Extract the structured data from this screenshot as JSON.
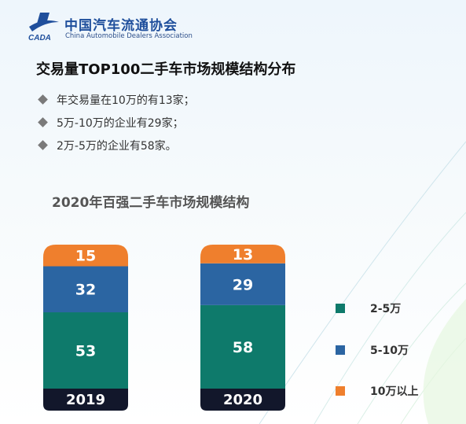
{
  "header": {
    "org_name_cn": "中国汽车流通协会",
    "org_name_en": "China Automobile Dealers Association",
    "logo_text": "CADA"
  },
  "slide": {
    "title": "交易量TOP100二手车市场规模结构分布",
    "bullets": [
      "年交易量在10万的有13家；",
      "5万-10万的企业有29家；",
      "2万-5万的企业有58家。"
    ]
  },
  "colors": {
    "teal": "#0e7a6b",
    "blue": "#2b65a2",
    "orange": "#ef7f2d",
    "label_bg": "#12172b"
  },
  "chart_data": {
    "type": "bar",
    "stacked": true,
    "title": "2020年百强二手车市场规模结构",
    "categories": [
      "2019",
      "2020"
    ],
    "series": [
      {
        "name": "2-5万",
        "color": "#0e7a6b",
        "values": [
          53,
          58
        ]
      },
      {
        "name": "5-10万",
        "color": "#2b65a2",
        "values": [
          32,
          29
        ]
      },
      {
        "name": "10万以上",
        "color": "#ef7f2d",
        "values": [
          15,
          13
        ]
      }
    ],
    "ylim": [
      0,
      100
    ],
    "legend_position": "right"
  }
}
